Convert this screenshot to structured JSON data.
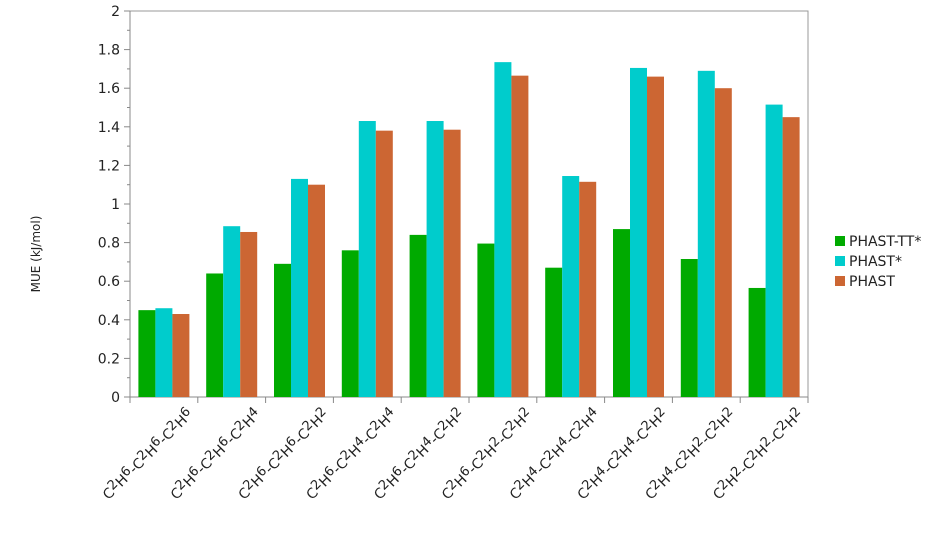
{
  "chart_data": {
    "type": "bar",
    "ylabel": "MUE (kJ/mol)",
    "ylim": [
      0,
      2
    ],
    "yticks": [
      "0",
      "0.2",
      "0.4",
      "0.6",
      "0.8",
      "1",
      "1.2",
      "1.4",
      "1.6",
      "1.8",
      "2"
    ],
    "grid": false,
    "legend_position": "right",
    "categories": [
      [
        [
          "C",
          ""
        ],
        [
          "2",
          "sup"
        ],
        [
          "H",
          ""
        ],
        [
          "6",
          "sup"
        ],
        [
          "-C",
          ""
        ],
        [
          "2",
          "sup"
        ],
        [
          "H",
          ""
        ],
        [
          "6",
          "sup"
        ],
        [
          "-C",
          ""
        ],
        [
          "2",
          "sup"
        ],
        [
          "H",
          ""
        ],
        [
          "6",
          "sup"
        ]
      ],
      [
        [
          "C",
          ""
        ],
        [
          "2",
          "sup"
        ],
        [
          "H",
          ""
        ],
        [
          "6",
          "sup"
        ],
        [
          "-C",
          ""
        ],
        [
          "2",
          "sup"
        ],
        [
          "H",
          ""
        ],
        [
          "6",
          "sup"
        ],
        [
          "-C",
          ""
        ],
        [
          "2",
          "sup"
        ],
        [
          "H",
          ""
        ],
        [
          "4",
          "sup"
        ]
      ],
      [
        [
          "C",
          ""
        ],
        [
          "2",
          "sup"
        ],
        [
          "H",
          ""
        ],
        [
          "6",
          "sup"
        ],
        [
          "-C",
          ""
        ],
        [
          "2",
          "sup"
        ],
        [
          "H",
          ""
        ],
        [
          "6",
          "sup"
        ],
        [
          "-C",
          ""
        ],
        [
          "2",
          "sup"
        ],
        [
          "H",
          ""
        ],
        [
          "2",
          "sup"
        ]
      ],
      [
        [
          "C",
          ""
        ],
        [
          "2",
          "sup"
        ],
        [
          "H",
          ""
        ],
        [
          "6",
          "sup"
        ],
        [
          "-C",
          ""
        ],
        [
          "2",
          "sup"
        ],
        [
          "H",
          ""
        ],
        [
          "4",
          "sup"
        ],
        [
          "-C",
          ""
        ],
        [
          "2",
          "sup"
        ],
        [
          "H",
          ""
        ],
        [
          "4",
          "sup"
        ]
      ],
      [
        [
          "C",
          ""
        ],
        [
          "2",
          "sup"
        ],
        [
          "H",
          ""
        ],
        [
          "6",
          "sup"
        ],
        [
          "-C",
          ""
        ],
        [
          "2",
          "sup"
        ],
        [
          "H",
          ""
        ],
        [
          "4",
          "sup"
        ],
        [
          "-C",
          ""
        ],
        [
          "2",
          "sup"
        ],
        [
          "H",
          ""
        ],
        [
          "2",
          "sup"
        ]
      ],
      [
        [
          "C",
          ""
        ],
        [
          "2",
          "sup"
        ],
        [
          "H",
          ""
        ],
        [
          "6",
          "sup"
        ],
        [
          "-C",
          ""
        ],
        [
          "2",
          "sup"
        ],
        [
          "H",
          ""
        ],
        [
          "2",
          "sup"
        ],
        [
          "-C",
          ""
        ],
        [
          "2",
          "sup"
        ],
        [
          "H",
          ""
        ],
        [
          "2",
          "sup"
        ]
      ],
      [
        [
          "C",
          ""
        ],
        [
          "2",
          "sup"
        ],
        [
          "H",
          ""
        ],
        [
          "4",
          "sup"
        ],
        [
          "-C",
          ""
        ],
        [
          "2",
          "sup"
        ],
        [
          "H",
          ""
        ],
        [
          "4",
          "sup"
        ],
        [
          "-C",
          ""
        ],
        [
          "2",
          "sup"
        ],
        [
          "H",
          ""
        ],
        [
          "4",
          "sup"
        ]
      ],
      [
        [
          "C",
          ""
        ],
        [
          "2",
          "sup"
        ],
        [
          "H",
          ""
        ],
        [
          "4",
          "sup"
        ],
        [
          "-C",
          ""
        ],
        [
          "2",
          "sup"
        ],
        [
          "H",
          ""
        ],
        [
          "4",
          "sup"
        ],
        [
          "-C",
          ""
        ],
        [
          "2",
          "sup"
        ],
        [
          "H",
          ""
        ],
        [
          "2",
          "sup"
        ]
      ],
      [
        [
          "C",
          ""
        ],
        [
          "2",
          "sup"
        ],
        [
          "H",
          ""
        ],
        [
          "4",
          "sup"
        ],
        [
          "-C",
          ""
        ],
        [
          "2",
          "sup"
        ],
        [
          "H",
          ""
        ],
        [
          "2",
          "sup"
        ],
        [
          "-C",
          ""
        ],
        [
          "2",
          "sup"
        ],
        [
          "H",
          ""
        ],
        [
          "2",
          "sup"
        ]
      ],
      [
        [
          "C",
          ""
        ],
        [
          "2",
          "sup"
        ],
        [
          "H",
          ""
        ],
        [
          "2",
          "sup"
        ],
        [
          "-C",
          ""
        ],
        [
          "2",
          "sup"
        ],
        [
          "H",
          ""
        ],
        [
          "2",
          "sup"
        ],
        [
          "-C",
          ""
        ],
        [
          "2",
          "sup"
        ],
        [
          "H",
          ""
        ],
        [
          "2",
          "sup"
        ]
      ]
    ],
    "series": [
      {
        "name": "PHAST-TT*",
        "color": "#00aa00",
        "values": [
          0.45,
          0.64,
          0.69,
          0.76,
          0.84,
          0.795,
          0.67,
          0.87,
          0.715,
          0.565
        ]
      },
      {
        "name": "PHAST*",
        "color": "#00cccc",
        "values": [
          0.46,
          0.885,
          1.13,
          1.43,
          1.43,
          1.735,
          1.145,
          1.705,
          1.69,
          1.515
        ]
      },
      {
        "name": "PHAST",
        "color": "#cc6633",
        "values": [
          0.43,
          0.855,
          1.1,
          1.38,
          1.385,
          1.665,
          1.115,
          1.66,
          1.6,
          1.45
        ]
      }
    ]
  }
}
